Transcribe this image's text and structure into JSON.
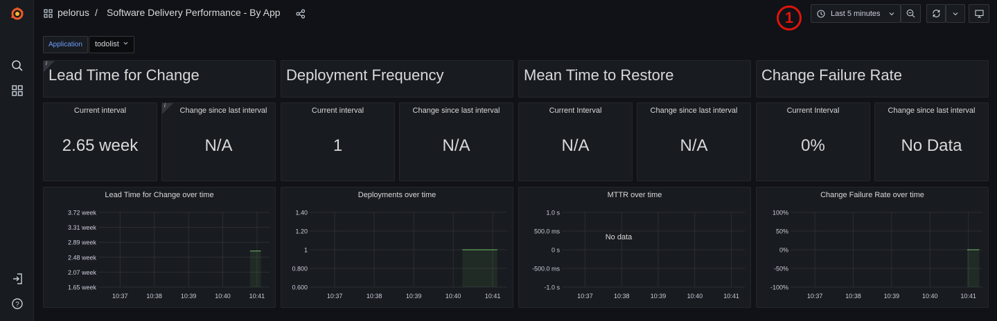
{
  "breadcrumb": {
    "folder": "pelorus",
    "separator": "/",
    "dashboard": "Software Delivery Performance - By App"
  },
  "toolbar": {
    "time_range": "Last 5 minutes"
  },
  "annotation_badge": "1",
  "variable": {
    "label": "Application",
    "value": "todolist"
  },
  "sections": [
    {
      "title": "Lead Time for Change"
    },
    {
      "title": "Deployment Frequency"
    },
    {
      "title": "Mean Time to Restore"
    },
    {
      "title": "Change Failure Rate"
    }
  ],
  "stats": [
    {
      "title": "Current interval",
      "value": "2.65 week"
    },
    {
      "title": "Change since last interval",
      "value": "N/A"
    },
    {
      "title": "Current interval",
      "value": "1"
    },
    {
      "title": "Change since last interval",
      "value": "N/A"
    },
    {
      "title": "Current Interval",
      "value": "N/A"
    },
    {
      "title": "Change since last interval",
      "value": "N/A"
    },
    {
      "title": "Current Interval",
      "value": "0%"
    },
    {
      "title": "Change since last interval",
      "value": "No Data"
    }
  ],
  "chart_data": [
    {
      "type": "line",
      "title": "Lead Time for Change over time",
      "x_ticks": [
        "10:37",
        "10:38",
        "10:39",
        "10:40",
        "10:41"
      ],
      "y_ticks": [
        "3.72 week",
        "3.31 week",
        "2.89 week",
        "2.48 week",
        "2.07 week",
        "1.65 week"
      ],
      "ylim": [
        1.65,
        3.72
      ],
      "series": [
        {
          "points": [
            {
              "x": "10:40:48",
              "y": 2.65
            },
            {
              "x": "10:41:07",
              "y": 2.65
            }
          ]
        }
      ]
    },
    {
      "type": "line",
      "title": "Deployments over time",
      "x_ticks": [
        "10:37",
        "10:38",
        "10:39",
        "10:40",
        "10:41"
      ],
      "y_ticks": [
        "1.40",
        "1.20",
        "1",
        "0.800",
        "0.600"
      ],
      "ylim": [
        0.6,
        1.4
      ],
      "series": [
        {
          "points": [
            {
              "x": "10:40:14",
              "y": 1
            },
            {
              "x": "10:41:07",
              "y": 1
            }
          ]
        }
      ]
    },
    {
      "type": "line",
      "title": "MTTR over time",
      "x_ticks": [
        "10:37",
        "10:38",
        "10:39",
        "10:40",
        "10:41"
      ],
      "y_ticks": [
        "1.0 s",
        "500.0 ms",
        "0 s",
        "-500.0 ms",
        "-1.0 s"
      ],
      "ylim": [
        -1,
        1
      ],
      "no_data": "No data",
      "series": []
    },
    {
      "type": "line",
      "title": "Change Failure Rate over time",
      "x_ticks": [
        "10:37",
        "10:38",
        "10:39",
        "10:40",
        "10:41"
      ],
      "y_ticks": [
        "100%",
        "50%",
        "0%",
        "-50%",
        "-100%"
      ],
      "ylim": [
        -100,
        100
      ],
      "series": [
        {
          "points": [
            {
              "x": "10:40:58",
              "y": 0
            },
            {
              "x": "10:41:17",
              "y": 0
            }
          ]
        }
      ]
    }
  ],
  "colors": {
    "series_green": "#73bf69",
    "accent_blue": "#6e9fff",
    "annotation_red": "#e0140b",
    "grafana_orange": "#f05a28"
  }
}
